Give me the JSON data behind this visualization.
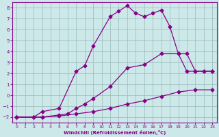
{
  "xlabel": "Windchill (Refroidissement éolien,°C)",
  "bg_color": "#cce8e8",
  "line_color": "#880088",
  "grid_color": "#99bbbb",
  "xlim": [
    -0.5,
    23.5
  ],
  "ylim": [
    -2.5,
    8.5
  ],
  "yticks": [
    -2,
    -1,
    0,
    1,
    2,
    3,
    4,
    5,
    6,
    7,
    8
  ],
  "xticks": [
    0,
    1,
    2,
    3,
    4,
    5,
    6,
    7,
    8,
    9,
    10,
    11,
    12,
    13,
    14,
    15,
    16,
    17,
    18,
    19,
    20,
    21,
    22,
    23
  ],
  "line1_x": [
    0,
    2,
    3,
    5,
    7,
    9,
    11,
    13,
    15,
    17,
    19,
    21,
    23
  ],
  "line1_y": [
    -2,
    -2,
    -2,
    -1.9,
    -1.7,
    -1.5,
    -1.2,
    -0.8,
    -0.5,
    -0.1,
    0.3,
    0.5,
    0.5
  ],
  "line2_x": [
    0,
    2,
    3,
    5,
    6,
    7,
    8,
    9,
    11,
    13,
    15,
    17,
    19,
    20,
    21,
    22,
    23
  ],
  "line2_y": [
    -2,
    -2,
    -2,
    -1.8,
    -1.7,
    -1.2,
    -0.8,
    -0.3,
    0.8,
    2.5,
    2.8,
    3.8,
    3.8,
    3.8,
    2.2,
    2.2,
    2.2
  ],
  "line3_x": [
    0,
    2,
    3,
    5,
    7,
    8,
    9,
    11,
    12,
    13,
    14,
    15,
    16,
    17,
    18,
    19,
    20,
    21,
    22,
    23
  ],
  "line3_y": [
    -2,
    -2,
    -1.5,
    -1.2,
    2.2,
    2.7,
    4.5,
    7.2,
    7.7,
    8.2,
    7.5,
    7.2,
    7.5,
    7.8,
    6.3,
    3.8,
    2.2,
    2.2,
    2.2,
    2.2
  ]
}
